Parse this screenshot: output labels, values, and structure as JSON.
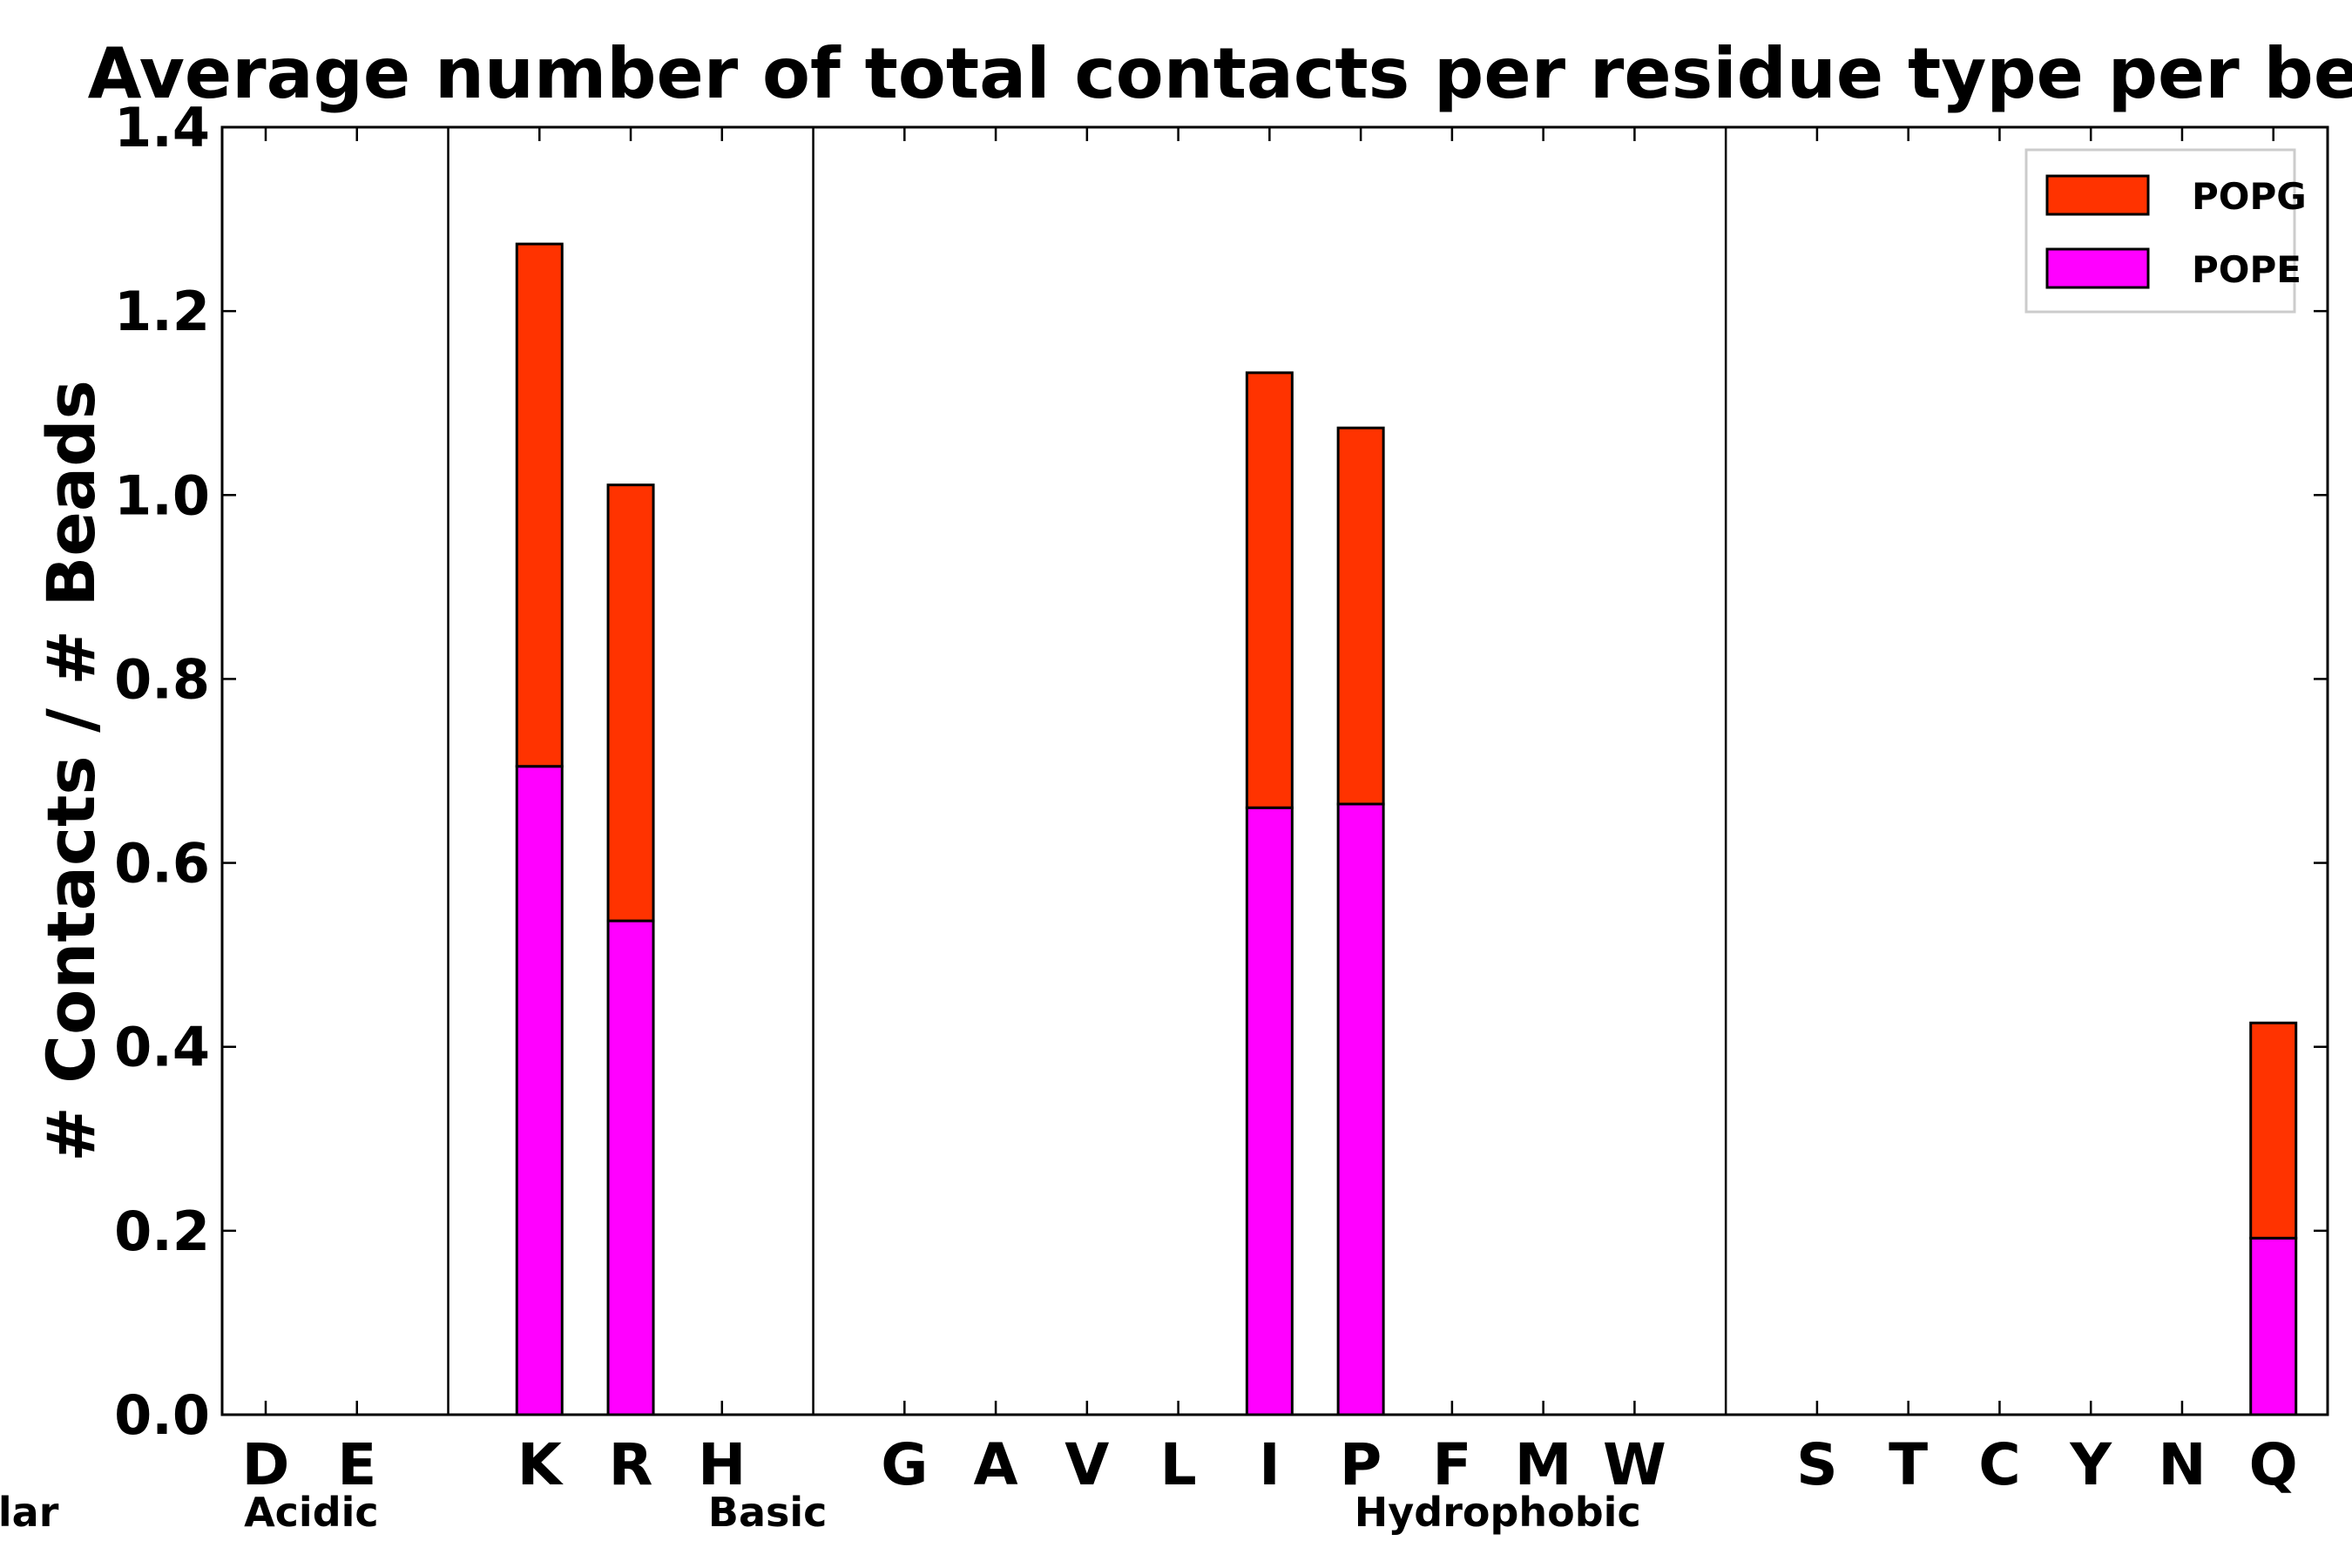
{
  "chart_data": {
    "type": "bar",
    "stacked": true,
    "title": "Average number of total contacts per residue type per bead",
    "xlabel": "",
    "ylabel": "# Contacts / # Beads",
    "ylim": [
      0,
      1.4
    ],
    "yticks": [
      "0.0",
      "0.2",
      "0.4",
      "0.6",
      "0.8",
      "1.0",
      "1.2",
      "1.4"
    ],
    "legend_position": "top-right",
    "categories": [
      "D",
      "E",
      "K",
      "R",
      "H",
      "G",
      "A",
      "V",
      "L",
      "I",
      "P",
      "F",
      "M",
      "W",
      "S",
      "T",
      "C",
      "Y",
      "N",
      "Q"
    ],
    "groups": [
      {
        "name": "Acidic",
        "members": [
          "D",
          "E"
        ]
      },
      {
        "name": "Basic",
        "members": [
          "K",
          "R",
          "H"
        ]
      },
      {
        "name": "Hydrophobic",
        "members": [
          "G",
          "A",
          "V",
          "L",
          "I",
          "P",
          "F",
          "M",
          "W"
        ]
      },
      {
        "name": "Polar",
        "members": [
          "S",
          "T",
          "C",
          "Y",
          "N",
          "Q"
        ]
      }
    ],
    "series": [
      {
        "name": "POPE",
        "color": "#ff00ff",
        "values": [
          0,
          0,
          0.705,
          0.537,
          0,
          0,
          0,
          0,
          0,
          0.66,
          0.664,
          0,
          0,
          0,
          0,
          0,
          0,
          0,
          0,
          0.192
        ]
      },
      {
        "name": "POPG",
        "color": "#ff3300",
        "values": [
          0,
          0,
          0.568,
          0.474,
          0,
          0,
          0,
          0,
          0,
          0.473,
          0.409,
          0,
          0,
          0,
          0,
          0,
          0,
          0,
          0,
          0.234
        ]
      }
    ]
  }
}
